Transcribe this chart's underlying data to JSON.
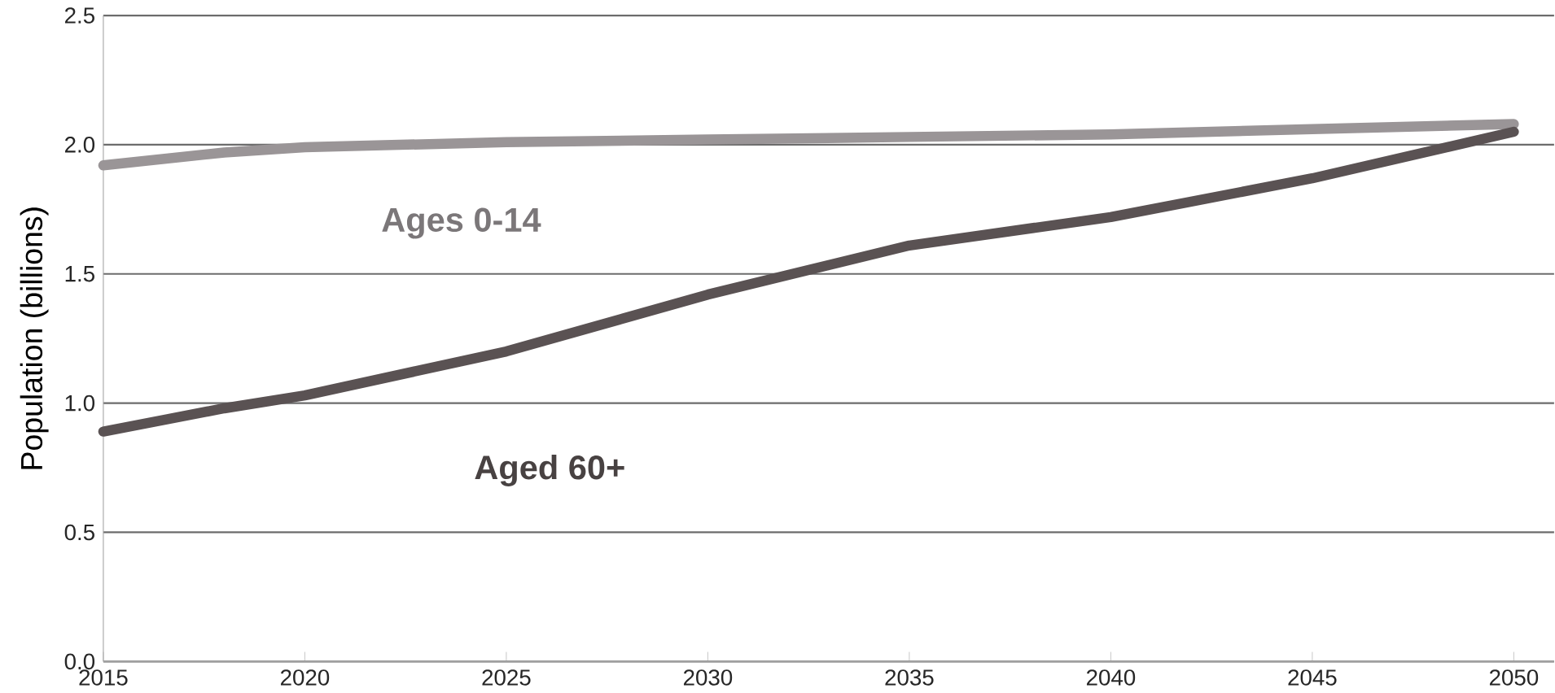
{
  "chart_data": {
    "type": "line",
    "ylabel": "Population (billions)",
    "x": [
      2015,
      2018,
      2020,
      2025,
      2030,
      2035,
      2040,
      2045,
      2050
    ],
    "series": [
      {
        "name": "Ages 0-14",
        "color": "#9a9597",
        "values": [
          1.92,
          1.97,
          1.99,
          2.01,
          2.02,
          2.03,
          2.04,
          2.06,
          2.08
        ]
      },
      {
        "name": "Aged 60+",
        "color": "#5a5253",
        "values": [
          0.89,
          0.98,
          1.03,
          1.2,
          1.42,
          1.61,
          1.72,
          1.87,
          2.05
        ]
      }
    ],
    "xlim": [
      2015,
      2051
    ],
    "ylim": [
      0,
      2.5
    ],
    "xticks": [
      2015,
      2020,
      2025,
      2030,
      2035,
      2040,
      2045,
      2050
    ],
    "yticks": [
      {
        "value": 0,
        "label": "0.0"
      },
      {
        "value": 0.5,
        "label": "0.5"
      },
      {
        "value": 1,
        "label": "1.0"
      },
      {
        "value": 1.5,
        "label": "1.5"
      },
      {
        "value": 2,
        "label": "2.0"
      },
      {
        "value": 2.5,
        "label": "2.5"
      }
    ],
    "grid": "y",
    "legend": false,
    "marker": "none",
    "line_style": "solid"
  }
}
